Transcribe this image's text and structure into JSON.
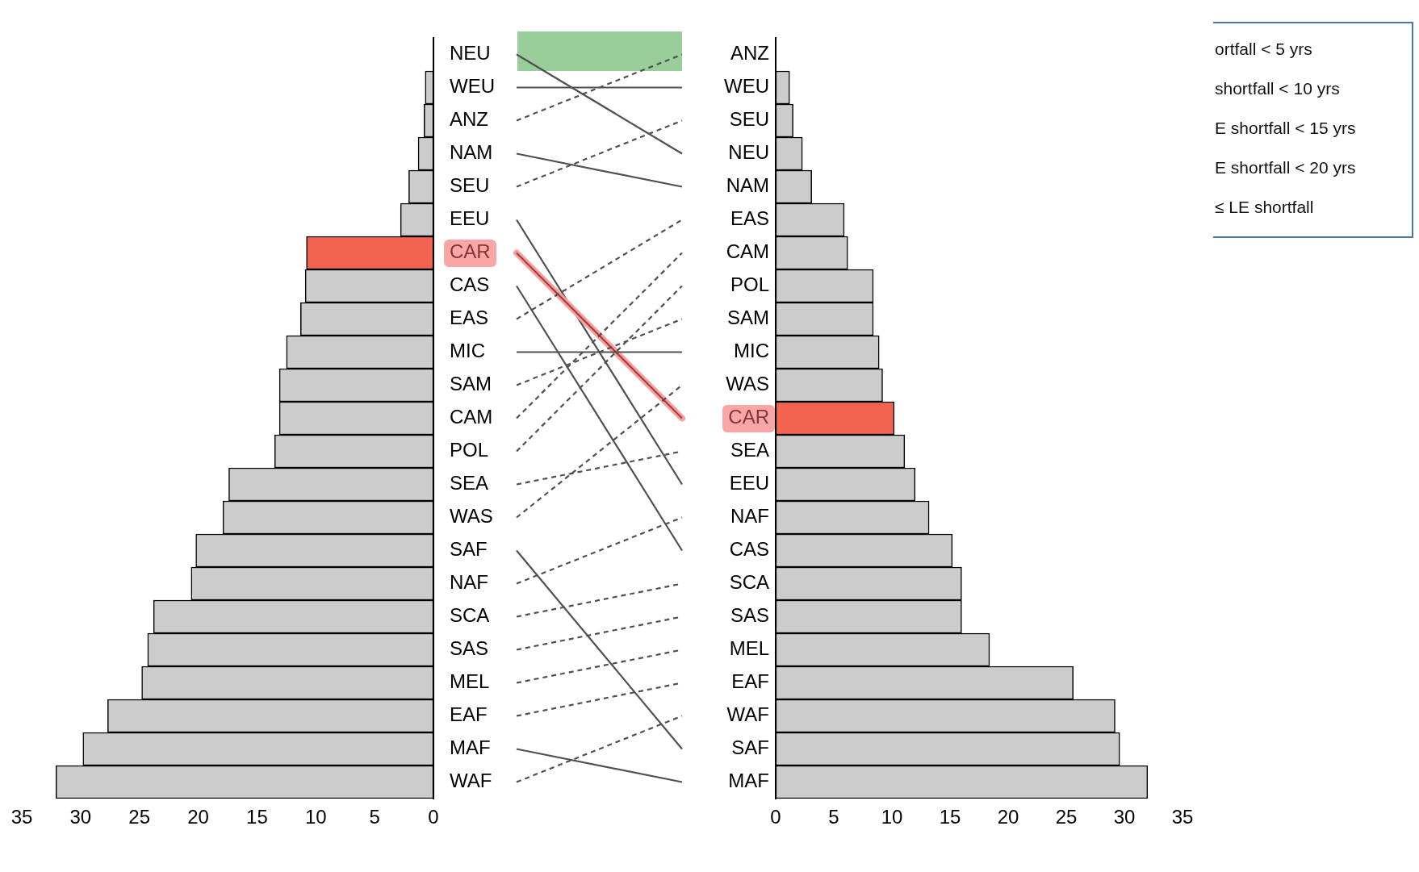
{
  "chart_data": [
    {
      "type": "bar",
      "orientation": "horizontal",
      "categories": [
        "NEU",
        "WEU",
        "ANZ",
        "NAM",
        "SEU",
        "EEU",
        "CAR",
        "CAS",
        "EAS",
        "MIC",
        "SAM",
        "CAM",
        "POL",
        "SEA",
        "WAS",
        "SAF",
        "NAF",
        "SCA",
        "SAS",
        "MEL",
        "EAF",
        "MAF",
        "WAF"
      ],
      "values": [
        0,
        0.7,
        0.8,
        1.3,
        2.1,
        2.8,
        10.8,
        10.9,
        11.3,
        12.5,
        13.1,
        13.1,
        13.5,
        17.4,
        17.9,
        20.2,
        20.6,
        23.8,
        24.3,
        24.8,
        27.7,
        29.8,
        32.1
      ],
      "colors": [
        "#cccccc",
        "#cccccc",
        "#cccccc",
        "#cccccc",
        "#cccccc",
        "#cccccc",
        "#f26450",
        "#cccccc",
        "#cccccc",
        "#cccccc",
        "#cccccc",
        "#cccccc",
        "#cccccc",
        "#cccccc",
        "#cccccc",
        "#cccccc",
        "#cccccc",
        "#cccccc",
        "#cccccc",
        "#cccccc",
        "#cccccc",
        "#cccccc",
        "#cccccc"
      ],
      "xlim": [
        35,
        0
      ],
      "xticks": [
        35,
        30,
        25,
        20,
        15,
        10,
        5,
        0
      ]
    },
    {
      "type": "bar",
      "orientation": "horizontal",
      "categories": [
        "ANZ",
        "WEU",
        "SEU",
        "NEU",
        "NAM",
        "EAS",
        "CAM",
        "POL",
        "SAM",
        "MIC",
        "WAS",
        "CAR",
        "SEA",
        "EEU",
        "NAF",
        "CAS",
        "SCA",
        "SAS",
        "MEL",
        "EAF",
        "WAF",
        "SAF",
        "MAF"
      ],
      "values": [
        0,
        1.2,
        1.5,
        2.3,
        3.1,
        5.9,
        6.2,
        8.4,
        8.4,
        8.9,
        9.2,
        10.2,
        11.1,
        12.0,
        13.2,
        15.2,
        16.0,
        16.0,
        18.4,
        25.6,
        29.2,
        29.6,
        32.0
      ],
      "colors": [
        "#cccccc",
        "#cccccc",
        "#cccccc",
        "#cccccc",
        "#cccccc",
        "#cccccc",
        "#cccccc",
        "#cccccc",
        "#cccccc",
        "#cccccc",
        "#cccccc",
        "#f26450",
        "#cccccc",
        "#cccccc",
        "#cccccc",
        "#cccccc",
        "#cccccc",
        "#cccccc",
        "#cccccc",
        "#cccccc",
        "#cccccc",
        "#cccccc",
        "#cccccc"
      ],
      "xlim": [
        0,
        35
      ],
      "xticks": [
        0,
        5,
        10,
        15,
        20,
        25,
        30,
        35
      ]
    },
    {
      "type": "other",
      "annotations": [
        "ortfall < 5 yrs",
        "shortfall < 10 yrs",
        "E shortfall < 15 yrs",
        "E shortfall < 20 yrs",
        "≤ LE shortfall"
      ]
    }
  ]
}
